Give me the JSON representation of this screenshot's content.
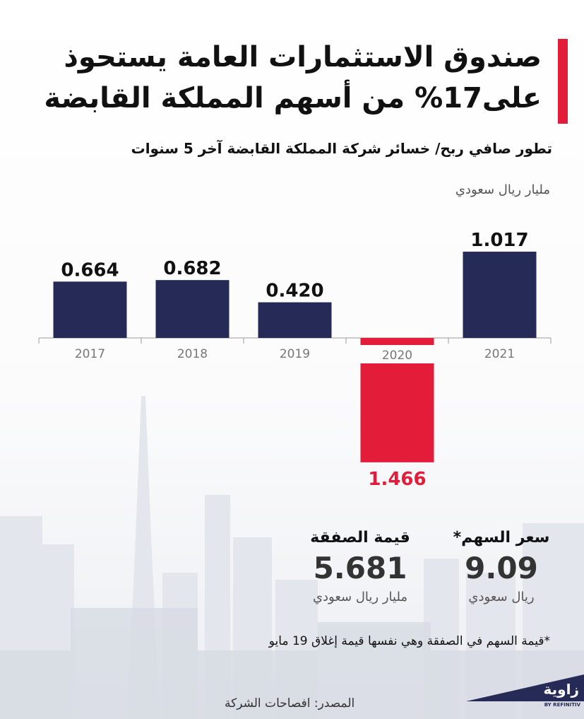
{
  "header": {
    "title_line1": "صندوق الاستثمارات العامة يستحوذ",
    "title_line2": "على17% من أسهم المملكة القابضة",
    "accent_color": "#e31c39"
  },
  "chart_data": {
    "type": "bar",
    "title": "تطور صافي ربح/ خسائر شركة المملكة القابضة آخر 5 سنوات",
    "ylabel": "مليار ريال سعودي",
    "categories": [
      "2017",
      "2018",
      "2019",
      "2020",
      "2021"
    ],
    "values": [
      0.664,
      0.682,
      0.42,
      -1.466,
      1.017
    ],
    "value_labels": [
      "0.664",
      "0.682",
      "0.420",
      "1.466",
      "1.017"
    ],
    "colors": {
      "positive": "#252a57",
      "negative": "#e31c39"
    },
    "grid": false,
    "legend": "none"
  },
  "stats": {
    "share_price": {
      "label": "سعر السهم*",
      "value": "9.09",
      "unit": "ريال سعودي"
    },
    "deal_value": {
      "label": "قيمة الصفقة",
      "value": "5.681",
      "unit": "مليار ريال سعودي"
    }
  },
  "footnote": "*قيمة السهم في الصفقة وهي نفسها قيمة إغلاق  19 مايو",
  "source": "المصدر: افصاحات الشركة",
  "logo": {
    "name": "زاوية",
    "tagline": "BY REFINITIV"
  }
}
